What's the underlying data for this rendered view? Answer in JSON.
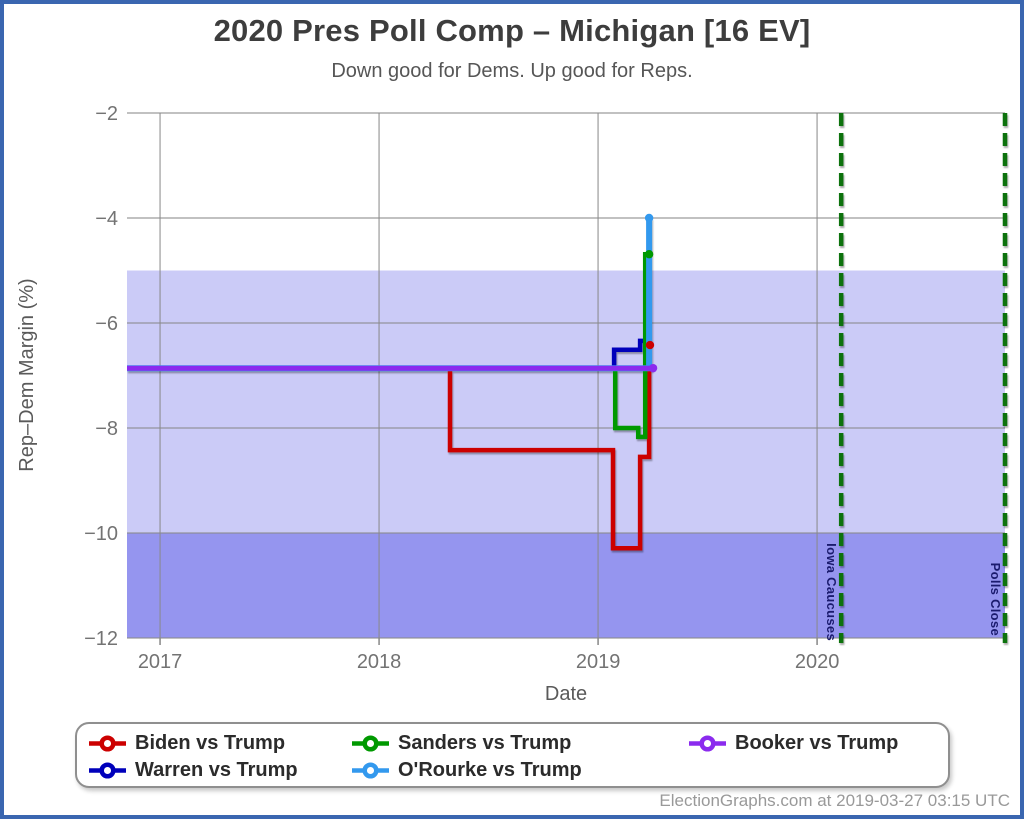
{
  "page": {
    "title": "2020 Pres Poll Comp – Michigan [16 EV]",
    "subtitle": "Down good for Dems. Up good for Reps.",
    "footer": "ElectionGraphs.com at 2019-03-27 03:15 UTC",
    "border_color": "#3a66b0"
  },
  "chart_data": {
    "type": "line",
    "title": "2020 Pres Poll Comp – Michigan [16 EV]",
    "subtitle": "Down good for Dems. Up good for Reps.",
    "xlabel": "Date",
    "ylabel": "Rep–Dem Margin (%)",
    "xlim": [
      2016.849,
      2020.858
    ],
    "ylim": [
      -12,
      -2
    ],
    "grid": true,
    "legend_position": "bottom",
    "x_ticks": [
      {
        "v": 2017,
        "label": "2017"
      },
      {
        "v": 2018,
        "label": "2018"
      },
      {
        "v": 2019,
        "label": "2019"
      },
      {
        "v": 2020,
        "label": "2020"
      }
    ],
    "y_ticks": [
      {
        "v": -2,
        "label": "−2"
      },
      {
        "v": -4,
        "label": "−4"
      },
      {
        "v": -6,
        "label": "−6"
      },
      {
        "v": -8,
        "label": "−8"
      },
      {
        "v": -10,
        "label": "−10"
      },
      {
        "v": -12,
        "label": "−12"
      }
    ],
    "bands": [
      {
        "name": "lean-dem-band",
        "from": -5,
        "to": -10,
        "color": "#cbcbf7"
      },
      {
        "name": "strong-dem-band",
        "from": -10,
        "to": -12,
        "color": "#9595ef"
      }
    ],
    "annotations": [
      {
        "label": "Iowa Caucuses",
        "x": 2020.11,
        "line_color": "#0c720c",
        "text_color": "#1b1b6e"
      },
      {
        "label": "Polls Close",
        "x": 2020.858,
        "line_color": "#0c720c",
        "text_color": "#1b1b6e"
      }
    ],
    "series": [
      {
        "name": "Biden vs Trump",
        "color": "#cc0000",
        "width": 4.5,
        "end_marker": true,
        "points": [
          [
            2016.849,
            -6.86
          ],
          [
            2018.324,
            -6.86
          ],
          [
            2018.324,
            -8.42
          ],
          [
            2019.068,
            -8.42
          ],
          [
            2019.068,
            -10.29
          ],
          [
            2019.192,
            -10.29
          ],
          [
            2019.192,
            -8.55
          ],
          [
            2019.233,
            -8.55
          ],
          [
            2019.233,
            -6.42
          ],
          [
            2019.237,
            -6.42
          ]
        ]
      },
      {
        "name": "Warren vs Trump",
        "color": "#0000bb",
        "width": 4.5,
        "end_marker": false,
        "points": [
          [
            2016.849,
            -6.86
          ],
          [
            2019.073,
            -6.86
          ],
          [
            2019.073,
            -6.51
          ],
          [
            2019.192,
            -6.51
          ],
          [
            2019.192,
            -6.34
          ],
          [
            2019.224,
            -6.34
          ]
        ]
      },
      {
        "name": "Sanders vs Trump",
        "color": "#009900",
        "width": 4.5,
        "end_marker": true,
        "points": [
          [
            2016.849,
            -6.86
          ],
          [
            2019.078,
            -6.86
          ],
          [
            2019.078,
            -8.0
          ],
          [
            2019.183,
            -8.0
          ],
          [
            2019.183,
            -8.17
          ],
          [
            2019.215,
            -8.17
          ],
          [
            2019.215,
            -4.69
          ],
          [
            2019.233,
            -4.69
          ]
        ]
      },
      {
        "name": "O'Rourke vs Trump",
        "color": "#3399ee",
        "width": 6,
        "end_marker": true,
        "points": [
          [
            2016.849,
            -6.86
          ],
          [
            2019.233,
            -6.86
          ],
          [
            2019.233,
            -4.0
          ]
        ]
      },
      {
        "name": "Booker vs Trump",
        "color": "#8b2bee",
        "width": 5,
        "end_marker": true,
        "points": [
          [
            2016.849,
            -6.86
          ],
          [
            2019.251,
            -6.86
          ]
        ]
      }
    ]
  }
}
